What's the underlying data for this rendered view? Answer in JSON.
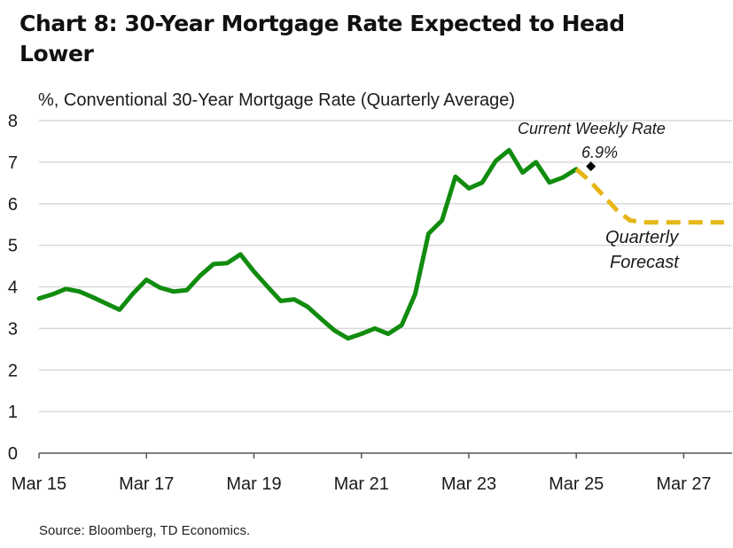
{
  "title": "Chart 8: 30-Year Mortgage Rate Expected to Head Lower",
  "source": "Source: Bloomberg, TD Economics.",
  "colors": {
    "actual": "#118c0f",
    "forecast": "#e5b616",
    "gridline": "#d9d9d9",
    "axis": "#555555",
    "marker": "#000000"
  },
  "chart_data": {
    "type": "line",
    "ylabel": "%, Conventional 30-Year Mortgage Rate (Quarterly Average)",
    "xlabel": "",
    "ylim": [
      0,
      8
    ],
    "yticks": [
      "0",
      "1",
      "2",
      "3",
      "4",
      "5",
      "6",
      "7",
      "8"
    ],
    "xlim": [
      "2015Q1",
      "2027Q4"
    ],
    "xticks": [
      "Mar 15",
      "Mar 17",
      "Mar 19",
      "Mar 21",
      "Mar 23",
      "Mar 25",
      "Mar 27"
    ],
    "grid": "horizontal",
    "series": [
      {
        "name": "",
        "style": "solid",
        "points": [
          [
            "2015Q1",
            3.72
          ],
          [
            "2015Q2",
            3.82
          ],
          [
            "2015Q3",
            3.95
          ],
          [
            "2015Q4",
            3.89
          ],
          [
            "2016Q1",
            3.75
          ],
          [
            "2016Q2",
            3.6
          ],
          [
            "2016Q3",
            3.45
          ],
          [
            "2016Q4",
            3.84
          ],
          [
            "2017Q1",
            4.17
          ],
          [
            "2017Q2",
            3.98
          ],
          [
            "2017Q3",
            3.89
          ],
          [
            "2017Q4",
            3.92
          ],
          [
            "2018Q1",
            4.27
          ],
          [
            "2018Q2",
            4.55
          ],
          [
            "2018Q3",
            4.57
          ],
          [
            "2018Q4",
            4.78
          ],
          [
            "2019Q1",
            4.37
          ],
          [
            "2019Q2",
            4.01
          ],
          [
            "2019Q3",
            3.66
          ],
          [
            "2019Q4",
            3.7
          ],
          [
            "2020Q1",
            3.52
          ],
          [
            "2020Q2",
            3.23
          ],
          [
            "2020Q3",
            2.95
          ],
          [
            "2020Q4",
            2.76
          ],
          [
            "2021Q1",
            2.87
          ],
          [
            "2021Q2",
            3.0
          ],
          [
            "2021Q3",
            2.87
          ],
          [
            "2021Q4",
            3.08
          ],
          [
            "2022Q1",
            3.82
          ],
          [
            "2022Q2",
            5.28
          ],
          [
            "2022Q3",
            5.6
          ],
          [
            "2022Q4",
            6.65
          ],
          [
            "2023Q1",
            6.37
          ],
          [
            "2023Q2",
            6.51
          ],
          [
            "2023Q3",
            7.03
          ],
          [
            "2023Q4",
            7.29
          ],
          [
            "2024Q1",
            6.75
          ],
          [
            "2024Q2",
            7.0
          ],
          [
            "2024Q3",
            6.51
          ],
          [
            "2024Q4",
            6.63
          ],
          [
            "2025Q1",
            6.83
          ]
        ]
      },
      {
        "name": "Quarterly Forecast",
        "style": "dashed",
        "points": [
          [
            "2025Q1",
            6.83
          ],
          [
            "2025Q2",
            6.55
          ],
          [
            "2025Q3",
            6.2
          ],
          [
            "2025Q4",
            5.85
          ],
          [
            "2026Q1",
            5.6
          ],
          [
            "2026Q2",
            5.55
          ],
          [
            "2026Q3",
            5.55
          ],
          [
            "2026Q4",
            5.55
          ],
          [
            "2027Q1",
            5.55
          ],
          [
            "2027Q2",
            5.55
          ],
          [
            "2027Q3",
            5.55
          ],
          [
            "2027Q4",
            5.55
          ]
        ]
      }
    ],
    "annotations": [
      {
        "label": "Current Weekly Rate",
        "value_label": "6.9%",
        "x": "2025Q2",
        "y": 6.9,
        "marker": "diamond"
      },
      {
        "label": "Quarterly",
        "label2": "Forecast"
      }
    ]
  }
}
